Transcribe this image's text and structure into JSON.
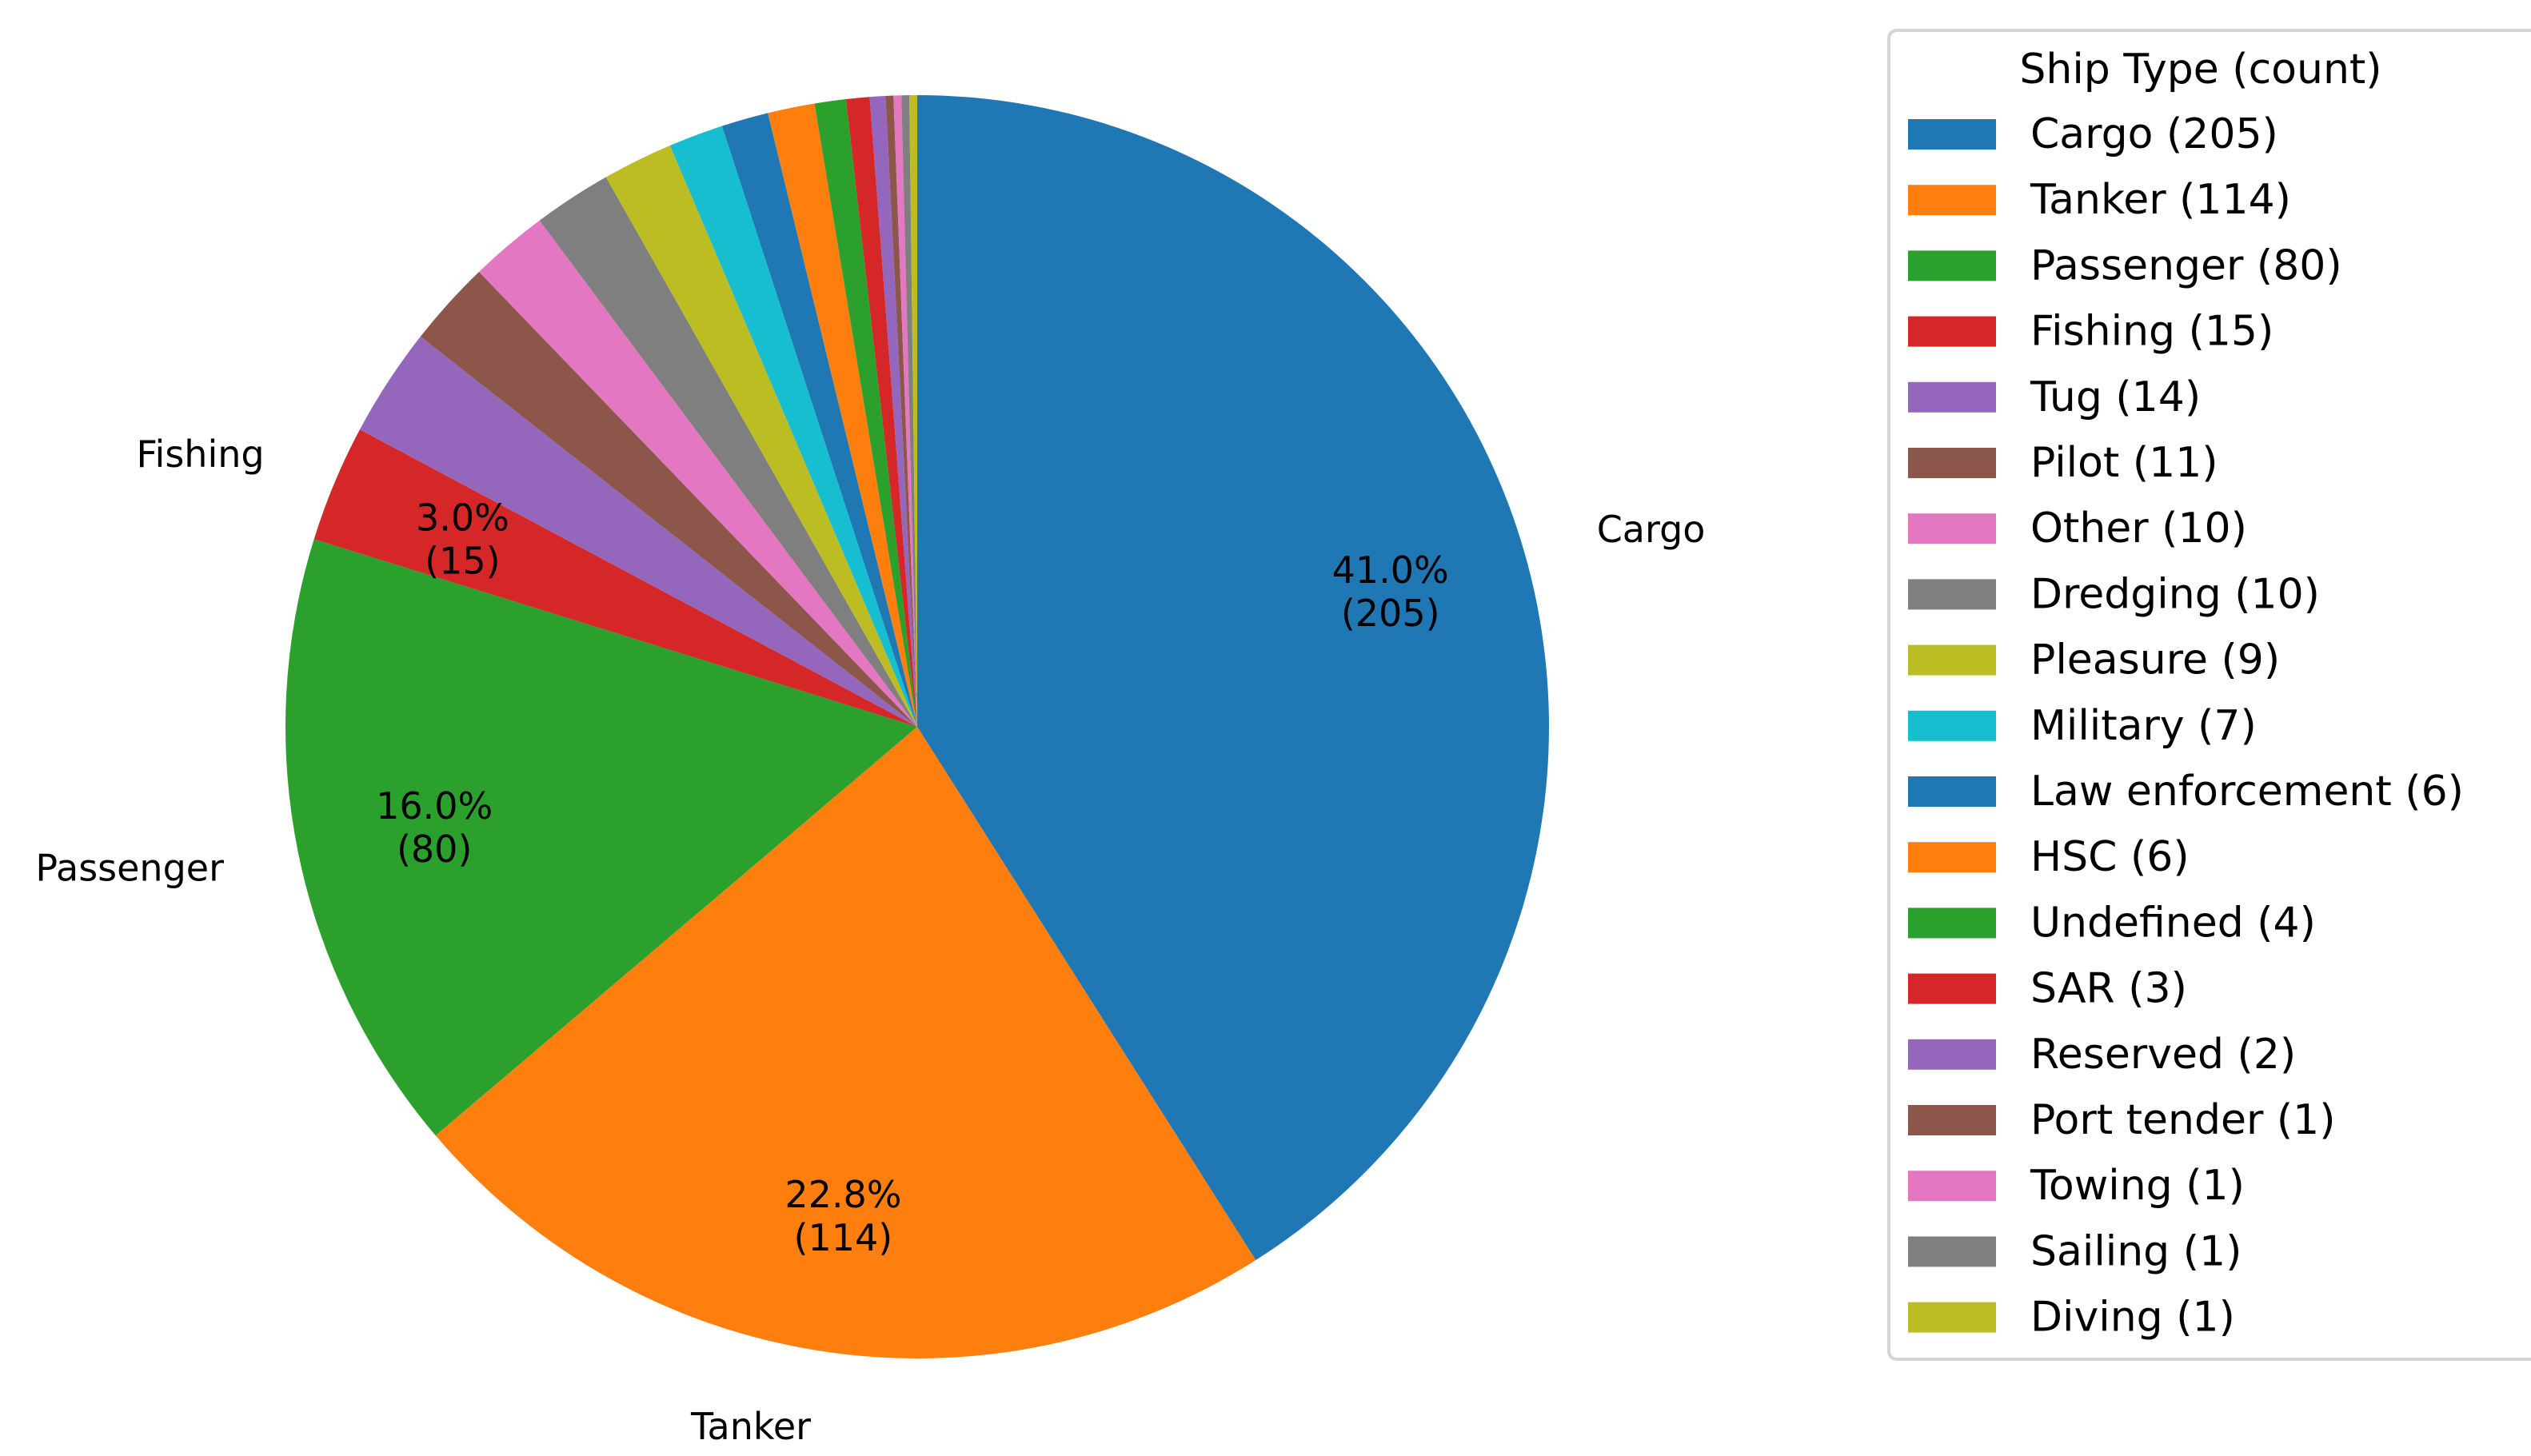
{
  "chart_data": {
    "type": "pie",
    "legend_title": "Ship Type (count)",
    "legend_placement": "right",
    "start_angle_deg": 90,
    "direction": "clockwise",
    "slices": [
      {
        "label": "Cargo",
        "value": 205,
        "color": "#1f77b4",
        "outer_label": "Cargo",
        "pct_text": "41.0%",
        "count_text": "(205)",
        "legend_text": "Cargo (205)"
      },
      {
        "label": "Tanker",
        "value": 114,
        "color": "#ff7f0e",
        "outer_label": "Tanker",
        "pct_text": "22.8%",
        "count_text": "(114)",
        "legend_text": "Tanker (114)"
      },
      {
        "label": "Passenger",
        "value": 80,
        "color": "#2ca02c",
        "outer_label": "Passenger",
        "pct_text": "16.0%",
        "count_text": "(80)",
        "legend_text": "Passenger (80)"
      },
      {
        "label": "Fishing",
        "value": 15,
        "color": "#d62728",
        "outer_label": "Fishing",
        "pct_text": "3.0%",
        "count_text": "(15)",
        "legend_text": "Fishing (15)"
      },
      {
        "label": "Tug",
        "value": 14,
        "color": "#9467bd",
        "outer_label": "",
        "pct_text": "",
        "count_text": "",
        "legend_text": "Tug (14)"
      },
      {
        "label": "Pilot",
        "value": 11,
        "color": "#8c564b",
        "outer_label": "",
        "pct_text": "",
        "count_text": "",
        "legend_text": "Pilot (11)"
      },
      {
        "label": "Other",
        "value": 10,
        "color": "#e377c2",
        "outer_label": "",
        "pct_text": "",
        "count_text": "",
        "legend_text": "Other (10)"
      },
      {
        "label": "Dredging",
        "value": 10,
        "color": "#7f7f7f",
        "outer_label": "",
        "pct_text": "",
        "count_text": "",
        "legend_text": "Dredging (10)"
      },
      {
        "label": "Pleasure",
        "value": 9,
        "color": "#bcbd22",
        "outer_label": "",
        "pct_text": "",
        "count_text": "",
        "legend_text": "Pleasure (9)"
      },
      {
        "label": "Military",
        "value": 7,
        "color": "#17becf",
        "outer_label": "",
        "pct_text": "",
        "count_text": "",
        "legend_text": "Military (7)"
      },
      {
        "label": "Law enforcement",
        "value": 6,
        "color": "#1f77b4",
        "outer_label": "",
        "pct_text": "",
        "count_text": "",
        "legend_text": "Law enforcement (6)"
      },
      {
        "label": "HSC",
        "value": 6,
        "color": "#ff7f0e",
        "outer_label": "",
        "pct_text": "",
        "count_text": "",
        "legend_text": "HSC (6)"
      },
      {
        "label": "Undefined",
        "value": 4,
        "color": "#2ca02c",
        "outer_label": "",
        "pct_text": "",
        "count_text": "",
        "legend_text": "Undefined (4)"
      },
      {
        "label": "SAR",
        "value": 3,
        "color": "#d62728",
        "outer_label": "",
        "pct_text": "",
        "count_text": "",
        "legend_text": "SAR (3)"
      },
      {
        "label": "Reserved",
        "value": 2,
        "color": "#9467bd",
        "outer_label": "",
        "pct_text": "",
        "count_text": "",
        "legend_text": "Reserved (2)"
      },
      {
        "label": "Port tender",
        "value": 1,
        "color": "#8c564b",
        "outer_label": "",
        "pct_text": "",
        "count_text": "",
        "legend_text": "Port tender (1)"
      },
      {
        "label": "Towing",
        "value": 1,
        "color": "#e377c2",
        "outer_label": "",
        "pct_text": "",
        "count_text": "",
        "legend_text": "Towing (1)"
      },
      {
        "label": "Sailing",
        "value": 1,
        "color": "#7f7f7f",
        "outer_label": "",
        "pct_text": "",
        "count_text": "",
        "legend_text": "Sailing (1)"
      },
      {
        "label": "Diving",
        "value": 1,
        "color": "#bcbd22",
        "outer_label": "",
        "pct_text": "",
        "count_text": "",
        "legend_text": "Diving (1)"
      }
    ]
  }
}
